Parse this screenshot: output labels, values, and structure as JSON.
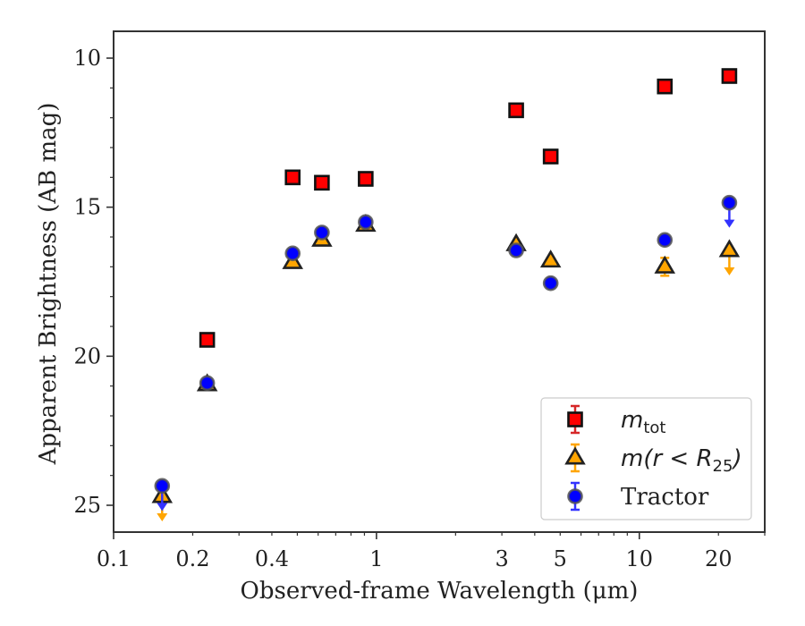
{
  "chart_data": {
    "type": "scatter",
    "title": "",
    "xlabel": "Observed-frame Wavelength (μm)",
    "ylabel": "Apparent Brightness (AB mag)",
    "x_scale": "log",
    "xlim": [
      0.1,
      30
    ],
    "ylim": [
      25.9,
      9.1
    ],
    "y_inverted": true,
    "x_ticks": [
      {
        "value": 0.1,
        "label": "0.1"
      },
      {
        "value": 0.2,
        "label": "0.2"
      },
      {
        "value": 0.4,
        "label": "0.4"
      },
      {
        "value": 1,
        "label": "1"
      },
      {
        "value": 3,
        "label": "3"
      },
      {
        "value": 5,
        "label": "5"
      },
      {
        "value": 10,
        "label": "10"
      },
      {
        "value": 20,
        "label": "20"
      }
    ],
    "y_ticks": [
      {
        "value": 10,
        "label": "10"
      },
      {
        "value": 15,
        "label": "15"
      },
      {
        "value": 20,
        "label": "20"
      },
      {
        "value": 25,
        "label": "25"
      }
    ],
    "grid": false,
    "legend_position": "lower-right",
    "series": [
      {
        "key": "mtot",
        "legend_main": "m",
        "legend_sub": "tot",
        "legend_suffix": "",
        "marker": "square",
        "fill": "#ff0000",
        "edge": "#111111",
        "err_color": "#d62728",
        "points": [
          {
            "x": 0.227,
            "y": 19.45
          },
          {
            "x": 0.48,
            "y": 14.0
          },
          {
            "x": 0.62,
            "y": 14.18
          },
          {
            "x": 0.91,
            "y": 14.05
          },
          {
            "x": 3.4,
            "y": 11.75
          },
          {
            "x": 4.6,
            "y": 13.3
          },
          {
            "x": 12.5,
            "y": 10.95
          },
          {
            "x": 22.0,
            "y": 10.6
          }
        ]
      },
      {
        "key": "mr25",
        "legend_main": "m(r < R",
        "legend_sub": "25",
        "legend_suffix": ")",
        "marker": "triangle",
        "fill": "#ffa500",
        "edge": "#222222",
        "err_color": "#ffa500",
        "points": [
          {
            "x": 0.153,
            "y": 24.7,
            "upper_limit": true
          },
          {
            "x": 0.227,
            "y": 20.95
          },
          {
            "x": 0.48,
            "y": 16.85
          },
          {
            "x": 0.62,
            "y": 16.1
          },
          {
            "x": 0.91,
            "y": 15.6
          },
          {
            "x": 3.4,
            "y": 16.25
          },
          {
            "x": 4.6,
            "y": 16.8
          },
          {
            "x": 12.5,
            "y": 17.0,
            "err": 0.3
          },
          {
            "x": 22.0,
            "y": 16.45,
            "upper_limit": true
          }
        ]
      },
      {
        "key": "tractor",
        "legend_main": "Tractor",
        "legend_sub": "",
        "legend_suffix": "",
        "marker": "circle",
        "fill": "#0000ff",
        "edge": "#555555",
        "err_color": "#3333ff",
        "points": [
          {
            "x": 0.153,
            "y": 24.35,
            "upper_limit": true
          },
          {
            "x": 0.227,
            "y": 20.9
          },
          {
            "x": 0.48,
            "y": 16.55
          },
          {
            "x": 0.62,
            "y": 15.85
          },
          {
            "x": 0.91,
            "y": 15.5
          },
          {
            "x": 3.4,
            "y": 16.45
          },
          {
            "x": 4.6,
            "y": 17.55
          },
          {
            "x": 12.5,
            "y": 16.1
          },
          {
            "x": 22.0,
            "y": 14.85,
            "upper_limit": true
          }
        ]
      }
    ]
  }
}
